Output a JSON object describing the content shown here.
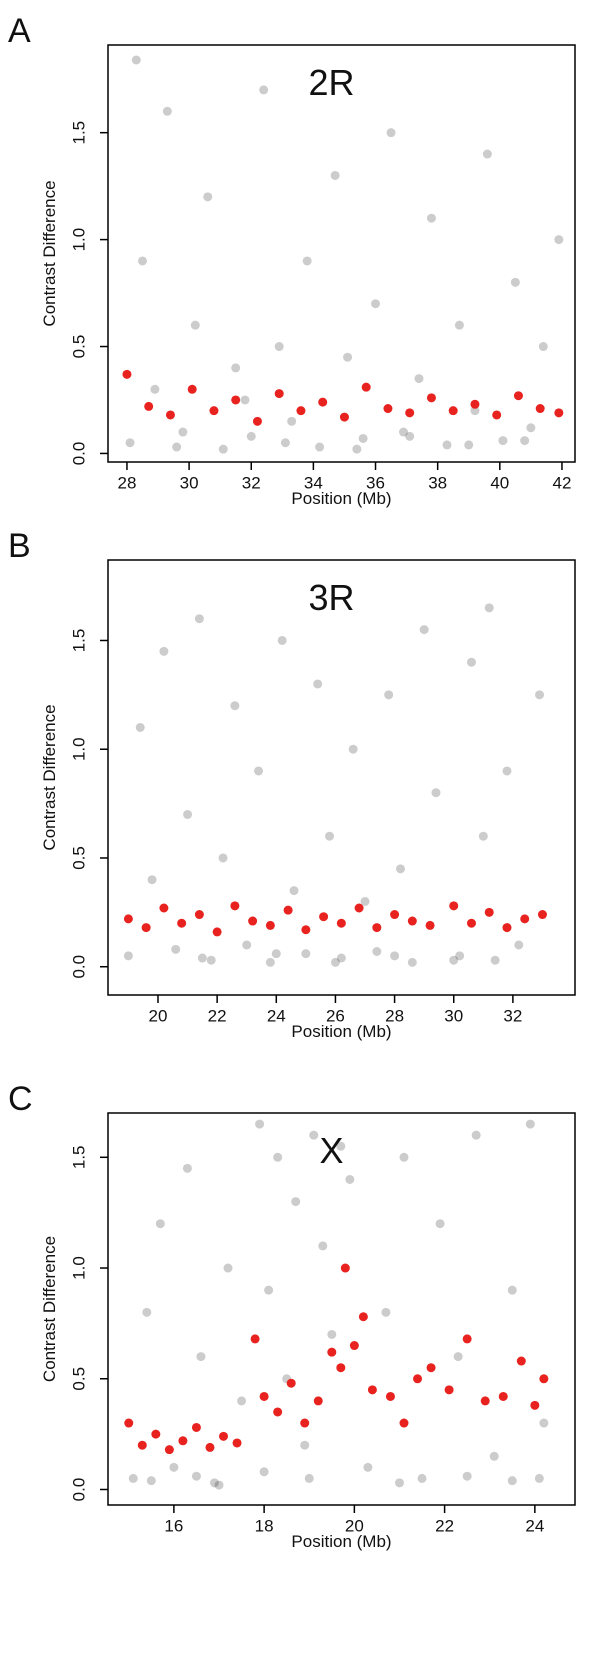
{
  "chart_data": [
    {
      "type": "scatter",
      "panel_label": "A",
      "title": "2R",
      "xlabel": "Position (Mb)",
      "ylabel": "Contrast Difference",
      "xlim": [
        27.39,
        42.42
      ],
      "ylim": [
        -0.04,
        1.91
      ],
      "xticks": [
        28,
        30,
        32,
        34,
        36,
        38,
        40,
        42
      ],
      "yticks": [
        {
          "value": 0,
          "label": "0.0"
        },
        {
          "value": 0.5,
          "label": "0.5"
        },
        {
          "value": 1,
          "label": "1.0"
        },
        {
          "value": 1.5,
          "label": "1.5"
        }
      ],
      "series": [
        {
          "color": "#000000",
          "opacity": 0.2,
          "x": [
            28.1,
            28.5,
            28.9,
            29.3,
            29.8,
            30.2,
            30.6,
            31.1,
            31.5,
            32.0,
            32.4,
            32.9,
            33.3,
            33.8,
            34.2,
            34.7,
            35.1,
            35.6,
            36.0,
            36.5,
            36.9,
            37.4,
            37.8,
            38.3,
            38.7,
            39.2,
            39.6,
            40.1,
            40.5,
            41.0,
            41.4,
            41.9,
            28.3,
            29.6,
            31.8,
            33.1,
            35.4,
            37.1,
            39.0,
            40.8
          ],
          "values": [
            0.05,
            0.9,
            0.3,
            1.6,
            0.1,
            0.6,
            1.2,
            0.02,
            0.4,
            0.08,
            1.7,
            0.5,
            0.15,
            0.9,
            0.03,
            1.3,
            0.45,
            0.07,
            0.7,
            1.5,
            0.1,
            0.35,
            1.1,
            0.04,
            0.6,
            0.2,
            1.4,
            0.06,
            0.8,
            0.12,
            0.5,
            1.0,
            1.84,
            0.03,
            0.25,
            0.05,
            0.02,
            0.08,
            0.04,
            0.06
          ]
        },
        {
          "color": "#e8231f",
          "opacity": 1,
          "x": [
            28.0,
            28.7,
            29.4,
            30.1,
            30.8,
            31.5,
            32.2,
            32.9,
            33.6,
            34.3,
            35.0,
            35.7,
            36.4,
            37.1,
            37.8,
            38.5,
            39.2,
            39.9,
            40.6,
            41.3,
            41.9
          ],
          "values": [
            0.37,
            0.22,
            0.18,
            0.3,
            0.2,
            0.25,
            0.15,
            0.28,
            0.2,
            0.24,
            0.17,
            0.31,
            0.21,
            0.19,
            0.26,
            0.2,
            0.23,
            0.18,
            0.27,
            0.21,
            0.19
          ]
        }
      ]
    },
    {
      "type": "scatter",
      "panel_label": "B",
      "title": "3R",
      "xlabel": "Position (Mb)",
      "ylabel": "Contrast Difference",
      "xlim": [
        18.31,
        34.1
      ],
      "ylim": [
        -0.13,
        1.87
      ],
      "xticks": [
        20,
        22,
        24,
        26,
        28,
        30,
        32
      ],
      "yticks": [
        {
          "value": 0,
          "label": "0.0"
        },
        {
          "value": 0.5,
          "label": "0.5"
        },
        {
          "value": 1,
          "label": "1.0"
        },
        {
          "value": 1.5,
          "label": "1.5"
        }
      ],
      "series": [
        {
          "color": "#000000",
          "opacity": 0.2,
          "x": [
            19.0,
            19.4,
            19.8,
            20.2,
            20.6,
            21.0,
            21.4,
            21.8,
            22.2,
            22.6,
            23.0,
            23.4,
            23.8,
            24.2,
            24.6,
            25.0,
            25.4,
            25.8,
            26.2,
            26.6,
            27.0,
            27.4,
            27.8,
            28.2,
            28.6,
            29.0,
            29.4,
            30.2,
            30.6,
            31.0,
            31.4,
            31.8,
            32.2,
            32.9,
            21.5,
            24.0,
            26.0,
            28.0,
            30.0,
            31.2
          ],
          "values": [
            0.05,
            1.1,
            0.4,
            1.45,
            0.08,
            0.7,
            1.6,
            0.03,
            0.5,
            1.2,
            0.1,
            0.9,
            0.02,
            1.5,
            0.35,
            0.06,
            1.3,
            0.6,
            0.04,
            1.0,
            0.3,
            0.07,
            1.25,
            0.45,
            0.02,
            1.55,
            0.8,
            0.05,
            1.4,
            0.6,
            0.03,
            0.9,
            0.1,
            1.25,
            0.04,
            0.06,
            0.02,
            0.05,
            0.03,
            1.65
          ]
        },
        {
          "color": "#e8231f",
          "opacity": 1,
          "x": [
            19.0,
            19.6,
            20.2,
            20.8,
            21.4,
            22.0,
            22.6,
            23.2,
            23.8,
            24.4,
            25.0,
            25.6,
            26.2,
            26.8,
            27.4,
            28.0,
            28.6,
            29.2,
            30.0,
            30.6,
            31.2,
            31.8,
            32.4,
            33.0
          ],
          "values": [
            0.22,
            0.18,
            0.27,
            0.2,
            0.24,
            0.16,
            0.28,
            0.21,
            0.19,
            0.26,
            0.17,
            0.23,
            0.2,
            0.27,
            0.18,
            0.24,
            0.21,
            0.19,
            0.28,
            0.2,
            0.25,
            0.18,
            0.22,
            0.24
          ]
        }
      ]
    },
    {
      "type": "scatter",
      "panel_label": "C",
      "title": "X",
      "xlabel": "Position (Mb)",
      "ylabel": "Contrast Difference",
      "xlim": [
        14.54,
        24.89
      ],
      "ylim": [
        -0.07,
        1.7
      ],
      "xticks": [
        16,
        18,
        20,
        22,
        24
      ],
      "yticks": [
        {
          "value": 0,
          "label": "0.0"
        },
        {
          "value": 0.5,
          "label": "0.5"
        },
        {
          "value": 1,
          "label": "1.0"
        },
        {
          "value": 1.5,
          "label": "1.5"
        }
      ],
      "series": [
        {
          "color": "#000000",
          "opacity": 0.2,
          "x": [
            15.1,
            15.4,
            15.7,
            16.0,
            16.3,
            16.6,
            16.9,
            17.2,
            17.5,
            17.9,
            18.1,
            18.3,
            18.5,
            18.7,
            18.9,
            19.1,
            19.3,
            19.5,
            19.7,
            19.9,
            20.3,
            20.7,
            21.1,
            21.5,
            21.9,
            22.3,
            22.7,
            23.1,
            23.5,
            23.9,
            24.2,
            15.5,
            16.5,
            17.0,
            18.0,
            19.0,
            21.0,
            22.5,
            23.5,
            24.1
          ],
          "values": [
            0.05,
            0.8,
            1.2,
            0.1,
            1.45,
            0.6,
            0.03,
            1.0,
            0.4,
            1.65,
            0.9,
            1.5,
            0.5,
            1.3,
            0.2,
            1.6,
            1.1,
            0.7,
            1.55,
            1.4,
            0.1,
            0.8,
            1.5,
            0.05,
            1.2,
            0.6,
            1.6,
            0.15,
            0.9,
            1.65,
            0.3,
            0.04,
            0.06,
            0.02,
            0.08,
            0.05,
            0.03,
            0.06,
            0.04,
            0.05
          ]
        },
        {
          "color": "#e8231f",
          "opacity": 1,
          "x": [
            15.0,
            15.3,
            15.6,
            15.9,
            16.2,
            16.5,
            16.8,
            17.1,
            17.4,
            17.8,
            18.0,
            18.3,
            18.6,
            18.9,
            19.2,
            19.5,
            19.7,
            19.8,
            20.0,
            20.2,
            20.4,
            20.8,
            21.1,
            21.4,
            21.7,
            22.1,
            22.5,
            22.9,
            23.3,
            23.7,
            24.0,
            24.2
          ],
          "values": [
            0.3,
            0.2,
            0.25,
            0.18,
            0.22,
            0.28,
            0.19,
            0.24,
            0.21,
            0.68,
            0.42,
            0.35,
            0.48,
            0.3,
            0.4,
            0.62,
            0.55,
            1.0,
            0.65,
            0.78,
            0.45,
            0.42,
            0.3,
            0.5,
            0.55,
            0.45,
            0.68,
            0.4,
            0.42,
            0.58,
            0.38,
            0.5
          ]
        }
      ]
    }
  ]
}
